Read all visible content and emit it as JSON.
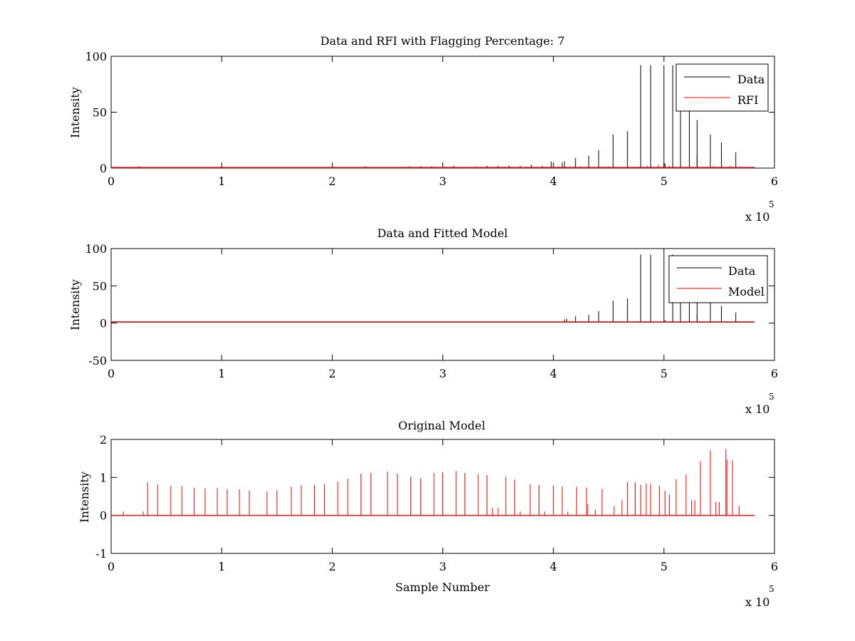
{
  "figure": {
    "background": "#ffffff"
  },
  "colors": {
    "data": "#000000",
    "rfi": "#ff0000",
    "model": "#ff0000",
    "axis": "#000000"
  },
  "chart_data": [
    {
      "type": "line",
      "title": "Data and RFI with Flagging Percentage: 7",
      "xlabel": "",
      "ylabel": "Intensity",
      "xlim": [
        0,
        6
      ],
      "ylim": [
        0,
        100
      ],
      "xticks": [
        0,
        1,
        2,
        3,
        4,
        5,
        6
      ],
      "yticks": [
        0,
        50,
        100
      ],
      "x_multiplier": {
        "base": "x 10",
        "exponent": "5"
      },
      "legend": {
        "position": "top-right",
        "entries": [
          "Data",
          "RFI"
        ]
      },
      "series": [
        {
          "name": "Data",
          "color": "#000000",
          "baseline": 0.5,
          "spikes": [
            [
              0.25,
              1.5
            ],
            [
              2.3,
              1.5
            ],
            [
              2.7,
              1.5
            ],
            [
              2.8,
              1.5
            ],
            [
              2.9,
              1.5
            ],
            [
              3.0,
              2
            ],
            [
              3.1,
              2
            ],
            [
              3.4,
              2
            ],
            [
              3.5,
              2
            ],
            [
              3.6,
              2
            ],
            [
              3.7,
              2
            ],
            [
              3.8,
              3
            ],
            [
              3.9,
              2
            ],
            [
              3.98,
              6
            ],
            [
              4.08,
              5
            ],
            [
              4.1,
              6
            ],
            [
              4.2,
              9
            ],
            [
              4.32,
              11
            ],
            [
              4.41,
              16
            ],
            [
              4.54,
              30
            ],
            [
              4.67,
              33
            ],
            [
              4.79,
              92
            ],
            [
              4.88,
              92
            ],
            [
              5.0,
              92
            ],
            [
              5.01,
              4
            ],
            [
              5.08,
              92
            ],
            [
              5.15,
              90
            ],
            [
              5.23,
              88
            ],
            [
              5.3,
              43
            ],
            [
              5.3,
              12
            ],
            [
              5.42,
              30
            ],
            [
              5.52,
              23
            ],
            [
              5.52,
              15
            ],
            [
              5.65,
              14
            ]
          ]
        },
        {
          "name": "RFI",
          "color": "#ff0000",
          "baseline": 0.3,
          "spikes": [
            [
              3.3,
              1.5
            ],
            [
              3.7,
              1.5
            ],
            [
              4.05,
              1.5
            ],
            [
              4.25,
              1.5
            ],
            [
              4.5,
              1.5
            ],
            [
              4.85,
              2
            ],
            [
              4.95,
              3
            ],
            [
              5.05,
              2
            ],
            [
              5.2,
              1
            ],
            [
              5.45,
              2
            ],
            [
              5.6,
              2
            ]
          ]
        }
      ]
    },
    {
      "type": "line",
      "title": "Data and Fitted Model",
      "xlabel": "",
      "ylabel": "Intensity",
      "xlim": [
        0,
        6
      ],
      "ylim": [
        -50,
        100
      ],
      "xticks": [
        0,
        1,
        2,
        3,
        4,
        5,
        6
      ],
      "yticks": [
        -50,
        0,
        50,
        100
      ],
      "x_multiplier": {
        "base": "x 10",
        "exponent": "5"
      },
      "legend": {
        "position": "top-right",
        "entries": [
          "Data",
          "Model"
        ]
      },
      "series": [
        {
          "name": "Data",
          "color": "#000000",
          "baseline": 1.5,
          "spikes": [
            [
              0.05,
              2
            ],
            [
              0.15,
              1.5
            ],
            [
              3.65,
              2
            ],
            [
              3.75,
              2
            ],
            [
              3.9,
              2
            ],
            [
              3.98,
              2
            ],
            [
              4.1,
              5
            ],
            [
              4.12,
              6
            ],
            [
              4.2,
              9
            ],
            [
              4.32,
              11
            ],
            [
              4.41,
              16
            ],
            [
              4.54,
              30
            ],
            [
              4.67,
              33
            ],
            [
              4.79,
              92
            ],
            [
              4.88,
              92
            ],
            [
              5.0,
              92
            ],
            [
              5.01,
              4
            ],
            [
              5.08,
              92
            ],
            [
              5.15,
              90
            ],
            [
              5.23,
              88
            ],
            [
              5.3,
              43
            ],
            [
              5.3,
              12
            ],
            [
              5.42,
              30
            ],
            [
              5.52,
              23
            ],
            [
              5.52,
              15
            ],
            [
              5.65,
              14
            ]
          ]
        },
        {
          "name": "Model",
          "color": "#ff0000",
          "baseline": 1.5,
          "spikes": []
        }
      ]
    },
    {
      "type": "line",
      "title": "Original Model",
      "xlabel": "Sample Number",
      "ylabel": "Intensity",
      "xlim": [
        0,
        6
      ],
      "ylim": [
        -1,
        2
      ],
      "xticks": [
        0,
        1,
        2,
        3,
        4,
        5,
        6
      ],
      "yticks": [
        -1,
        0,
        1,
        2
      ],
      "x_multiplier": {
        "base": "x 10",
        "exponent": "5"
      },
      "legend": null,
      "series": [
        {
          "name": "",
          "color": "#ff0000",
          "baseline": 0,
          "spikes": [
            [
              0.11,
              0.1
            ],
            [
              0.29,
              0.1
            ],
            [
              0.33,
              0.87
            ],
            [
              0.42,
              0.82
            ],
            [
              0.54,
              0.78
            ],
            [
              0.64,
              0.77
            ],
            [
              0.75,
              0.73
            ],
            [
              0.85,
              0.71
            ],
            [
              0.96,
              0.72
            ],
            [
              1.05,
              0.69
            ],
            [
              1.16,
              0.69
            ],
            [
              1.25,
              0.66
            ],
            [
              1.41,
              0.63
            ],
            [
              1.5,
              0.66
            ],
            [
              1.63,
              0.75
            ],
            [
              1.72,
              0.79
            ],
            [
              1.84,
              0.8
            ],
            [
              1.93,
              0.83
            ],
            [
              2.05,
              0.89
            ],
            [
              2.14,
              0.97
            ],
            [
              2.26,
              1.1
            ],
            [
              2.35,
              1.12
            ],
            [
              2.5,
              1.15
            ],
            [
              2.59,
              1.1
            ],
            [
              2.71,
              1.02
            ],
            [
              2.8,
              0.98
            ],
            [
              2.92,
              1.12
            ],
            [
              3.0,
              1.14
            ],
            [
              3.12,
              1.17
            ],
            [
              3.2,
              1.12
            ],
            [
              3.32,
              1.09
            ],
            [
              3.4,
              1.06
            ],
            [
              3.45,
              0.2
            ],
            [
              3.5,
              0.2
            ],
            [
              3.57,
              1.02
            ],
            [
              3.65,
              0.94
            ],
            [
              3.7,
              0.1
            ],
            [
              3.79,
              0.82
            ],
            [
              3.87,
              0.8
            ],
            [
              3.92,
              0.1
            ],
            [
              4.0,
              0.79
            ],
            [
              4.08,
              0.76
            ],
            [
              4.13,
              0.1
            ],
            [
              4.21,
              0.75
            ],
            [
              4.3,
              0.73
            ],
            [
              4.31,
              0.3
            ],
            [
              4.38,
              0.15
            ],
            [
              4.44,
              0.7
            ],
            [
              4.55,
              0.25
            ],
            [
              4.62,
              0.4
            ],
            [
              4.67,
              0.88
            ],
            [
              4.74,
              0.87
            ],
            [
              4.79,
              0.8
            ],
            [
              4.84,
              0.84
            ],
            [
              4.88,
              0.83
            ],
            [
              4.96,
              0.78
            ],
            [
              5.01,
              0.65
            ],
            [
              5.05,
              0.55
            ],
            [
              5.11,
              0.95
            ],
            [
              5.2,
              1.08
            ],
            [
              5.25,
              0.4
            ],
            [
              5.28,
              0.4
            ],
            [
              5.33,
              1.43
            ],
            [
              5.42,
              1.71
            ],
            [
              5.47,
              0.35
            ],
            [
              5.5,
              0.35
            ],
            [
              5.56,
              1.74
            ],
            [
              5.57,
              1.47
            ],
            [
              5.62,
              1.45
            ],
            [
              5.68,
              0.25
            ]
          ]
        }
      ]
    }
  ]
}
